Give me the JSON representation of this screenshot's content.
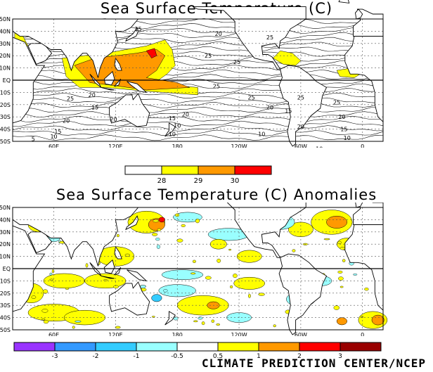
{
  "map_top": {
    "title": "Sea Surface Temperature (C)",
    "lat_labels": [
      "50N",
      "40N",
      "30N",
      "20N",
      "10N",
      "EQ",
      "10S",
      "20S",
      "30S",
      "40S",
      "50S"
    ],
    "lon_labels": [
      "60E",
      "120E",
      "180",
      "120W",
      "60W",
      "0"
    ],
    "contour_labels": [
      "15",
      "20",
      "25",
      "25",
      "25",
      "20",
      "15",
      "10",
      "10",
      "10",
      "15",
      "20",
      "25",
      "25",
      "20",
      "25",
      "25",
      "20",
      "15",
      "10",
      "10",
      "20",
      "15",
      "20",
      "25",
      "20",
      "15",
      "10",
      "5"
    ],
    "legend": {
      "tick_labels": [
        "28",
        "29",
        "30"
      ],
      "colors": [
        "#ffffff",
        "#ffff00",
        "#ff9900",
        "#ff0000"
      ]
    }
  },
  "map_bottom": {
    "title": "Sea Surface Temperature (C) Anomalies",
    "lat_labels": [
      "50N",
      "40N",
      "30N",
      "20N",
      "10N",
      "EQ",
      "10S",
      "20S",
      "30S",
      "40S",
      "50S"
    ],
    "lon_labels": [
      "60E",
      "120E",
      "180",
      "120W",
      "60W",
      "0"
    ],
    "legend": {
      "tick_labels": [
        "-3",
        "-2",
        "-1",
        "-0.5",
        "0.5",
        "1",
        "2",
        "3"
      ],
      "colors": [
        "#9933ff",
        "#3399ff",
        "#33ccff",
        "#99ffff",
        "#ffffff",
        "#ffff00",
        "#ff9900",
        "#ff0000",
        "#990000"
      ]
    }
  },
  "footer": "CLIMATE PREDICTION CENTER/NCEP"
}
